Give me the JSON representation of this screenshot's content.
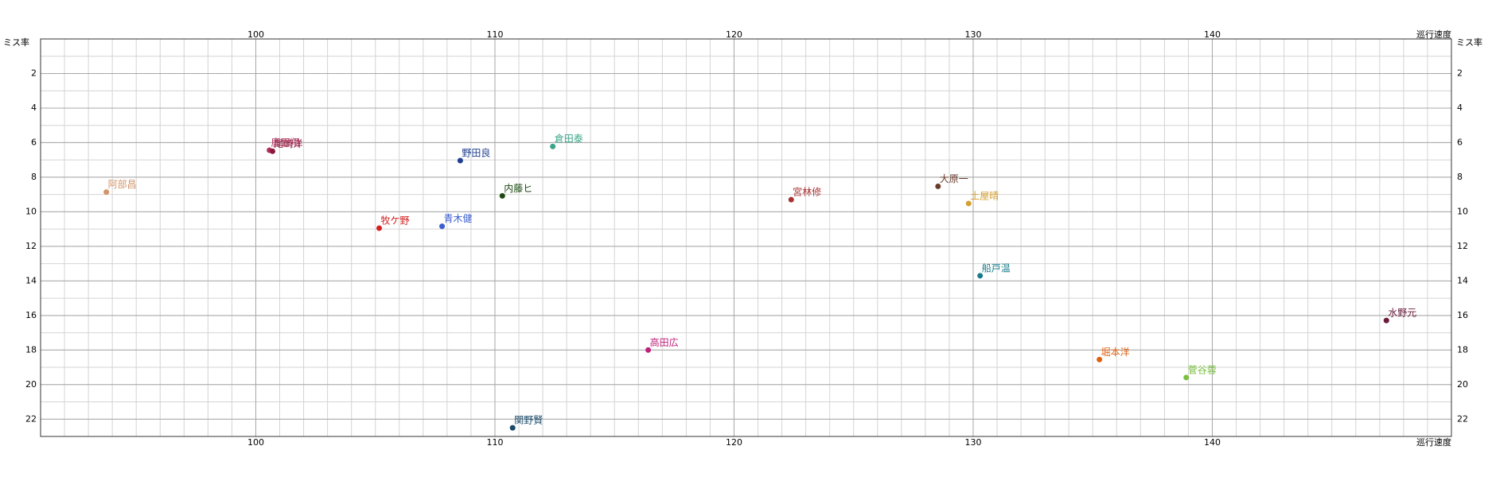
{
  "chart_data": {
    "type": "scatter",
    "x_label": "巡行速度",
    "y_label": "ミス率",
    "xlim": [
      91,
      150
    ],
    "ylim": [
      0,
      23
    ],
    "y_inverted": true,
    "xticks": [
      100,
      110,
      120,
      130,
      140
    ],
    "yticks": [
      2,
      4,
      6,
      8,
      10,
      12,
      14,
      16,
      18,
      20,
      22
    ],
    "grid": true,
    "minor_grid": {
      "x": 1,
      "y": 1
    },
    "series": [
      {
        "name": "阿部昌",
        "color": "#d2956b",
        "x": [
          93.75
        ],
        "values": [
          8.86
        ]
      },
      {
        "name": "鹿野翔",
        "color": "#b03060",
        "x": [
          100.57
        ],
        "values": [
          6.44
        ]
      },
      {
        "name": "尾崎洋",
        "color": "#8b1a3a",
        "x": [
          100.7
        ],
        "values": [
          6.5
        ]
      },
      {
        "name": "野田良",
        "color": "#1f3f8f",
        "x": [
          108.55
        ],
        "values": [
          7.04
        ]
      },
      {
        "name": "倉田泰",
        "color": "#3aa58a",
        "x": [
          112.42
        ],
        "values": [
          6.22
        ]
      },
      {
        "name": "内藤ヒ",
        "color": "#1e4a12",
        "x": [
          110.31
        ],
        "values": [
          9.08
        ]
      },
      {
        "name": "牧ケ野",
        "color": "#d42020",
        "x": [
          105.16
        ],
        "values": [
          10.95
        ]
      },
      {
        "name": "青木健",
        "color": "#3a5fcf",
        "x": [
          107.79
        ],
        "values": [
          10.84
        ]
      },
      {
        "name": "宮林修",
        "color": "#a83232",
        "x": [
          122.39
        ],
        "values": [
          9.3
        ]
      },
      {
        "name": "大原一",
        "color": "#6b3a2a",
        "x": [
          128.53
        ],
        "values": [
          8.53
        ]
      },
      {
        "name": "土屋晴",
        "color": "#d4a030",
        "x": [
          129.81
        ],
        "values": [
          9.52
        ]
      },
      {
        "name": "船戸温",
        "color": "#167a8a",
        "x": [
          130.29
        ],
        "values": [
          13.7
        ]
      },
      {
        "name": "水野元",
        "color": "#6a1a3a",
        "x": [
          147.28
        ],
        "values": [
          16.29
        ]
      },
      {
        "name": "高田広",
        "color": "#c0207a",
        "x": [
          116.41
        ],
        "values": [
          18.0
        ]
      },
      {
        "name": "堀本洋",
        "color": "#e06010",
        "x": [
          135.28
        ],
        "values": [
          18.55
        ]
      },
      {
        "name": "菅谷蓉",
        "color": "#7ac040",
        "x": [
          138.91
        ],
        "values": [
          19.59
        ]
      },
      {
        "name": "関野賢",
        "color": "#1a4a6a",
        "x": [
          110.74
        ],
        "values": [
          22.5
        ]
      }
    ]
  }
}
